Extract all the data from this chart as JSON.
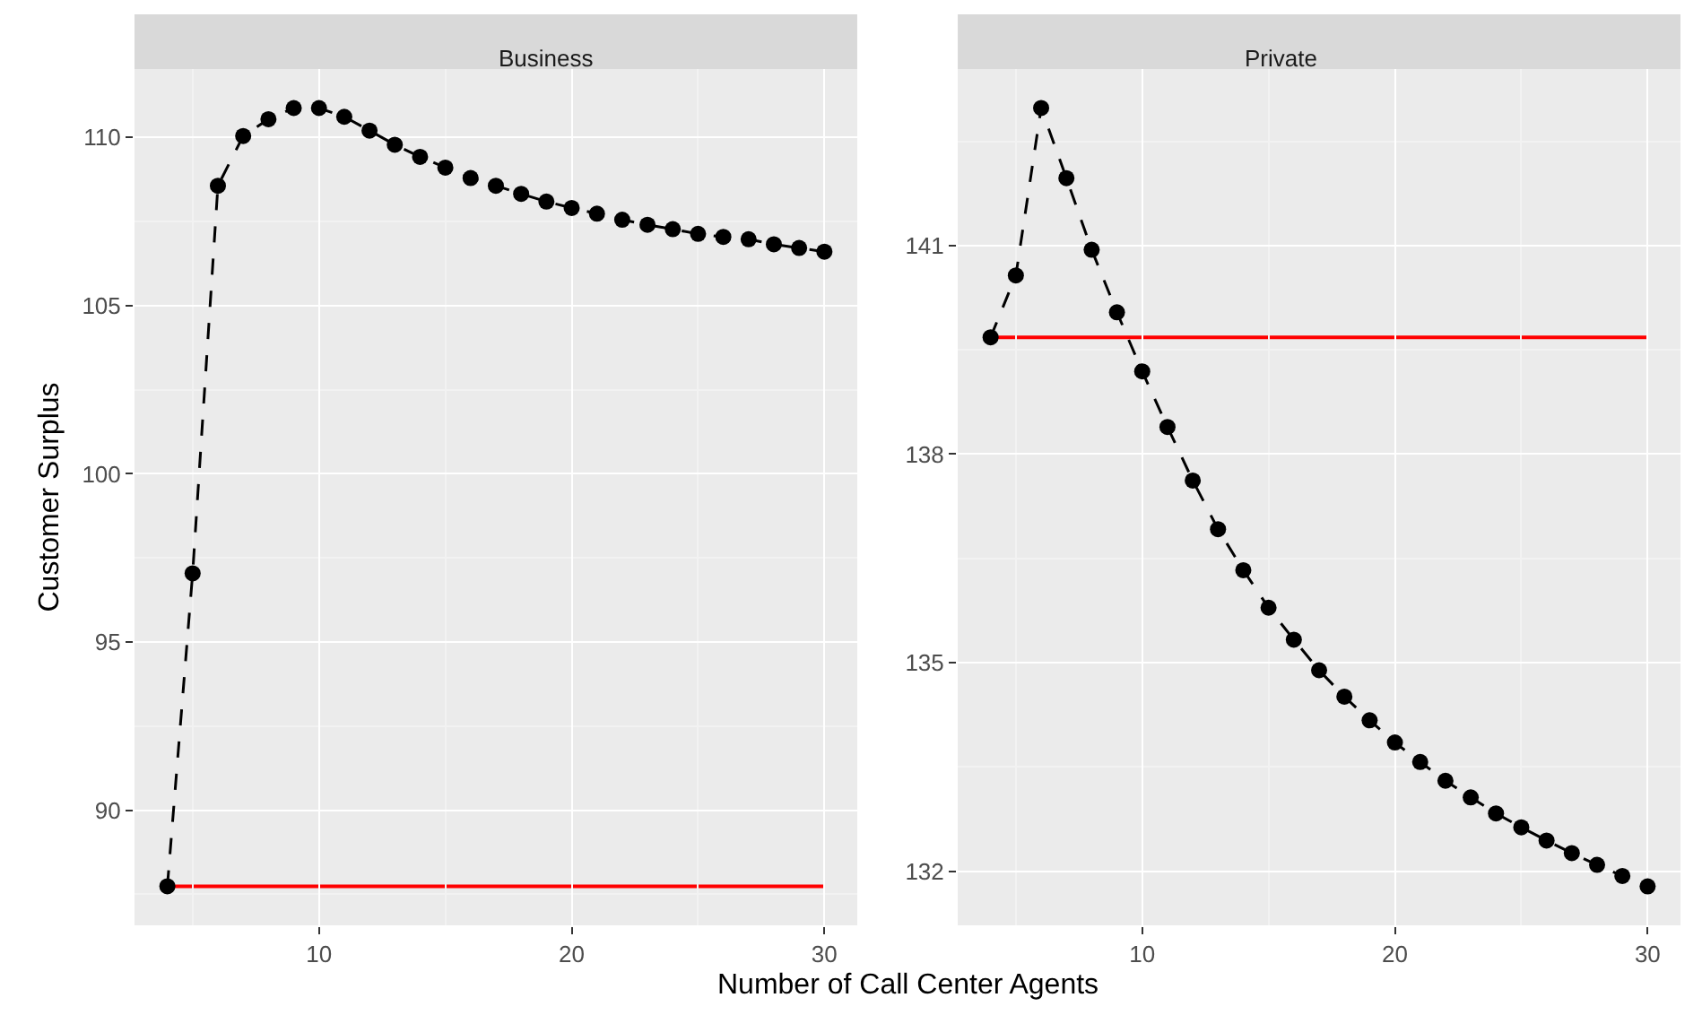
{
  "chart_data": [
    {
      "type": "line",
      "title": "Business",
      "xlabel": "Number of Call Center Agents",
      "ylabel": "Customer Surplus",
      "marker": "circle",
      "line_style": "dashed",
      "grid": true,
      "x": [
        4,
        5,
        6,
        7,
        8,
        9,
        10,
        11,
        12,
        13,
        14,
        15,
        16,
        17,
        18,
        19,
        20,
        21,
        22,
        23,
        24,
        25,
        26,
        27,
        28,
        29,
        30
      ],
      "series": [
        {
          "color": "#000000",
          "values": [
            87.74,
            97.04,
            108.56,
            110.04,
            110.54,
            110.87,
            110.87,
            110.61,
            110.2,
            109.78,
            109.42,
            109.1,
            108.79,
            108.56,
            108.32,
            108.09,
            107.9,
            107.73,
            107.55,
            107.4,
            107.27,
            107.13,
            107.04,
            106.97,
            106.82,
            106.71,
            106.6
          ]
        }
      ],
      "ref_lines": [
        {
          "axis": "y",
          "value": 87.74,
          "color": "#ff0000"
        }
      ],
      "xlim": [
        2.7,
        31.3
      ],
      "ylim": [
        86.58,
        112.03
      ],
      "xticks": [
        10,
        20,
        30
      ],
      "yticks": [
        90,
        95,
        100,
        105,
        110
      ]
    },
    {
      "type": "line",
      "title": "Private",
      "marker": "circle",
      "line_style": "dashed",
      "grid": true,
      "x": [
        4,
        5,
        6,
        7,
        8,
        9,
        10,
        11,
        12,
        13,
        14,
        15,
        16,
        17,
        18,
        19,
        20,
        21,
        22,
        23,
        24,
        25,
        26,
        27,
        28,
        29,
        30
      ],
      "series": [
        {
          "color": "#000000",
          "values": [
            139.68,
            140.57,
            142.98,
            141.97,
            140.94,
            140.04,
            139.19,
            138.39,
            137.62,
            136.92,
            136.33,
            135.79,
            135.33,
            134.89,
            134.51,
            134.17,
            133.85,
            133.57,
            133.3,
            133.06,
            132.83,
            132.63,
            132.44,
            132.26,
            132.09,
            131.93,
            131.78
          ]
        }
      ],
      "ref_lines": [
        {
          "axis": "y",
          "value": 139.68,
          "color": "#ff0000"
        }
      ],
      "xlim": [
        2.7,
        31.3
      ],
      "ylim": [
        131.22,
        143.54
      ],
      "xticks": [
        10,
        20,
        30
      ],
      "yticks": [
        132,
        135,
        138,
        141
      ]
    }
  ]
}
